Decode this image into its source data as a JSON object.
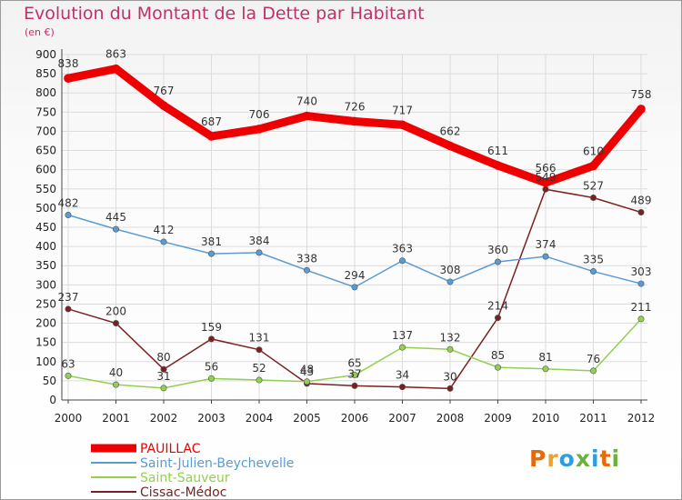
{
  "chart_data": {
    "type": "line",
    "title": "Evolution du Montant de la Dette par Habitant",
    "subtitle": "(en €)",
    "x": [
      "2000",
      "2001",
      "2002",
      "2003",
      "2004",
      "2005",
      "2006",
      "2007",
      "2008",
      "2009",
      "2010",
      "2011",
      "2012"
    ],
    "ylim": [
      0,
      900
    ],
    "yticks": [
      0,
      50,
      100,
      150,
      200,
      250,
      300,
      350,
      400,
      450,
      500,
      550,
      600,
      650,
      700,
      750,
      800,
      850,
      900
    ],
    "grid": true,
    "legend_position": "bottom-left",
    "series": [
      {
        "name": "PAUILLAC",
        "color": "#ee0000",
        "values": [
          838,
          863,
          767,
          687,
          706,
          740,
          726,
          717,
          662,
          611,
          566,
          610,
          758
        ]
      },
      {
        "name": "Saint-Julien-Beychevelle",
        "color": "#5b9bd5",
        "values": [
          482,
          445,
          412,
          381,
          384,
          338,
          294,
          363,
          308,
          360,
          374,
          335,
          303
        ]
      },
      {
        "name": "Saint-Sauveur",
        "color": "#92d050",
        "values": [
          63,
          40,
          31,
          56,
          52,
          48,
          65,
          137,
          132,
          85,
          81,
          76,
          211
        ]
      },
      {
        "name": "Cissac-Médoc",
        "color": "#7b2020",
        "values": [
          237,
          200,
          80,
          159,
          131,
          43,
          37,
          34,
          30,
          214,
          549,
          527,
          489
        ]
      }
    ]
  },
  "brand": {
    "letters": [
      "P",
      "r",
      "o",
      "x",
      "i",
      "t",
      "i"
    ],
    "colors": [
      "#e36c09",
      "#f0a030",
      "#2e9de0",
      "#6bb13d",
      "#2e9de0",
      "#e36c09",
      "#6bb13d"
    ]
  }
}
